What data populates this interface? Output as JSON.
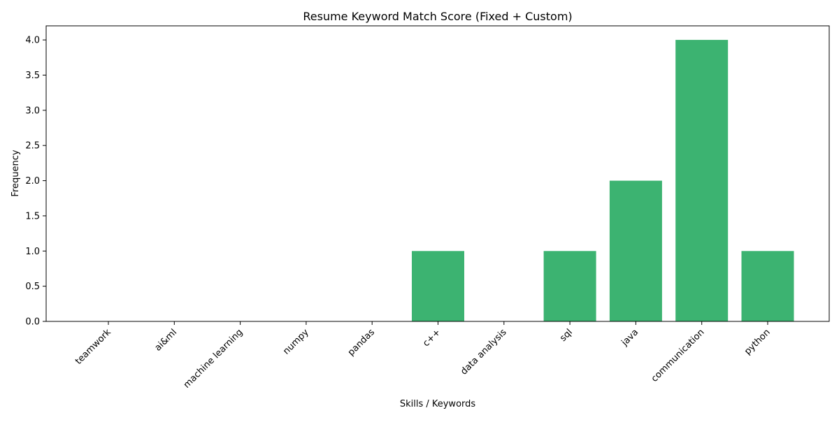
{
  "chart_data": {
    "type": "bar",
    "title": "Resume Keyword Match Score (Fixed + Custom)",
    "xlabel": "Skills / Keywords",
    "ylabel": "Frequency",
    "categories": [
      "teamwork",
      "ai&ml",
      "machine learning",
      "numpy",
      "pandas",
      "c++",
      "data analysis",
      "sql",
      "java",
      "communication",
      "python"
    ],
    "values": [
      0,
      0,
      0,
      0,
      0,
      1,
      0,
      1,
      2,
      4,
      1
    ],
    "ylim": [
      0,
      4.2
    ],
    "yticks": [
      "0.0",
      "0.5",
      "1.0",
      "1.5",
      "2.0",
      "2.5",
      "3.0",
      "3.5",
      "4.0"
    ],
    "bar_color": "#3cb371",
    "grid": false,
    "legend": "none"
  }
}
